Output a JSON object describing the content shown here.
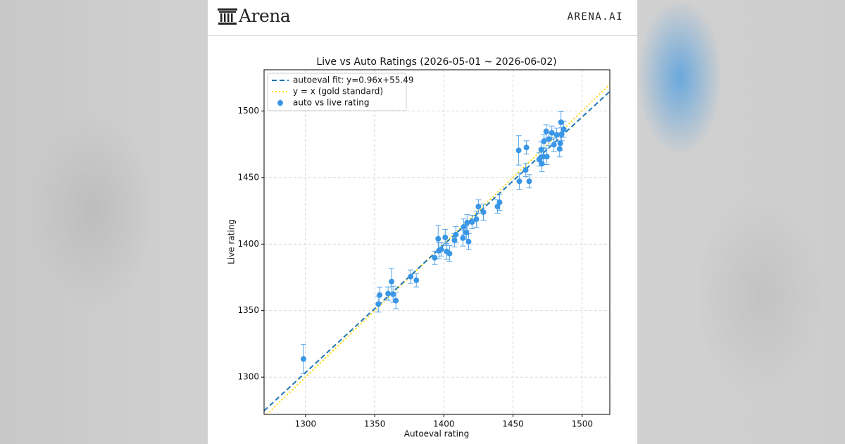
{
  "header": {
    "brand": "Arena",
    "site": "ARENA.AI"
  },
  "chart_data": {
    "type": "scatter",
    "title": "Live vs Auto Ratings (2026-05-01 ~ 2026-06-02)",
    "x_label": "Autoeval rating",
    "y_label": "Live rating",
    "xlim": [
      1270,
      1520
    ],
    "ylim": [
      1272,
      1531
    ],
    "xticks": [
      1300,
      1350,
      1400,
      1450,
      1500
    ],
    "yticks": [
      1300,
      1350,
      1400,
      1450,
      1500
    ],
    "grid": true,
    "legend": "upper left",
    "series": [
      {
        "name": "auto vs live rating",
        "color": "#3a96e6",
        "x": [
          1298.5,
          1352.6,
          1353.6,
          1359.7,
          1362.2,
          1363.3,
          1365.3,
          1376.0,
          1380.1,
          1393.4,
          1395.9,
          1396.4,
          1398.0,
          1401.0,
          1402.0,
          1404.1,
          1407.7,
          1408.7,
          1413.8,
          1414.3,
          1416.3,
          1416.8,
          1417.9,
          1420.4,
          1423.5,
          1425.0,
          1428.6,
          1438.8,
          1440.3,
          1454.1,
          1454.6,
          1459.2,
          1459.7,
          1461.7,
          1468.9,
          1470.4,
          1470.9,
          1471.9,
          1472.4,
          1474.0,
          1474.5,
          1476.0,
          1478.1,
          1479.6,
          1481.6,
          1483.7,
          1484.2,
          1484.7,
          1486.7,
          1485.2
        ],
        "values": [
          1313.7,
          1354.9,
          1361.7,
          1362.8,
          1371.8,
          1362.3,
          1357.5,
          1375.5,
          1372.8,
          1389.7,
          1404.0,
          1395.0,
          1396.0,
          1405.0,
          1394.5,
          1392.9,
          1402.9,
          1407.1,
          1404.5,
          1412.9,
          1408.7,
          1416.1,
          1401.8,
          1416.6,
          1418.7,
          1428.2,
          1424.0,
          1428.2,
          1431.4,
          1470.4,
          1447.2,
          1455.7,
          1472.6,
          1447.2,
          1463.6,
          1471.0,
          1460.4,
          1465.7,
          1477.3,
          1484.7,
          1465.7,
          1478.9,
          1483.6,
          1474.7,
          1482.1,
          1471.5,
          1475.7,
          1491.6,
          1486.3,
          1482.6
        ],
        "errors": [
          11,
          6,
          6,
          5,
          10,
          6,
          6,
          5,
          5,
          5,
          10,
          6,
          5,
          6,
          6,
          6,
          5,
          6,
          6,
          6,
          5,
          6,
          6,
          5,
          6,
          5,
          6,
          5,
          6,
          11,
          6,
          5,
          5,
          5,
          5,
          6,
          6,
          6,
          5,
          5,
          6,
          5,
          5,
          5,
          5,
          6,
          5,
          8,
          6,
          5
        ]
      }
    ],
    "fit": {
      "name": "autoeval fit: y=0.96x+55.49",
      "slope": 0.96,
      "intercept": 55.49,
      "color": "#1f77b4"
    },
    "reference": {
      "name": "y = x (gold standard)",
      "color": "#ffd700"
    }
  }
}
